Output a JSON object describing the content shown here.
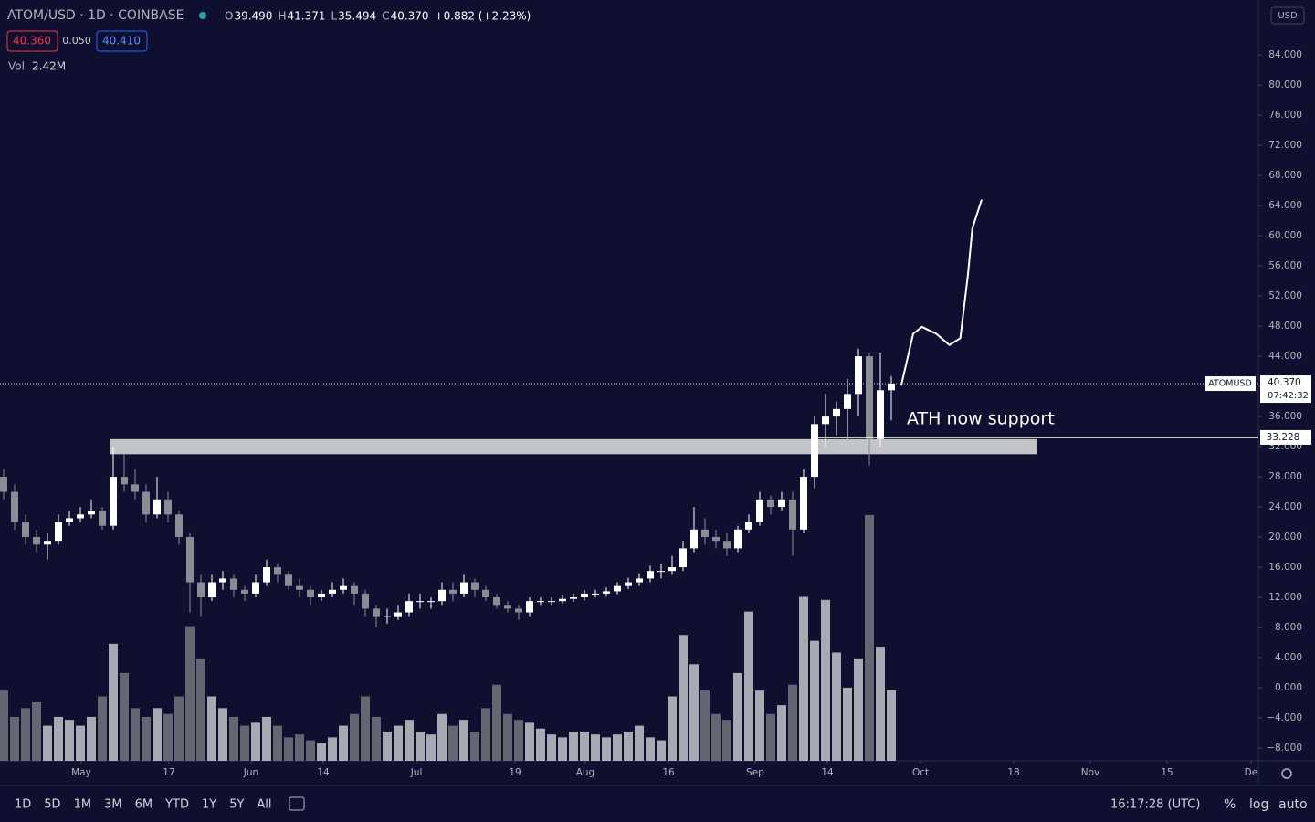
{
  "header": {
    "symbol": "ATOM/USD · 1D · COINBASE",
    "ohlc": [
      {
        "key": "O",
        "value": "39.490"
      },
      {
        "key": "H",
        "value": "41.371"
      },
      {
        "key": "L",
        "value": "35.494"
      },
      {
        "key": "C",
        "value": "40.370"
      }
    ],
    "change": "+0.882 (+2.23%)"
  },
  "quotes": {
    "bid": "40.360",
    "spread": "0.050",
    "ask": "40.410"
  },
  "volume_label": {
    "label": "Vol",
    "value": "2.42M"
  },
  "currency": "USD",
  "toolbar": {
    "ranges": [
      "1D",
      "5D",
      "1M",
      "3M",
      "6M",
      "YTD",
      "1Y",
      "5Y",
      "All"
    ],
    "time": "16:17:28 (UTC)",
    "options": [
      "%",
      "log",
      "auto"
    ]
  },
  "chart_data": {
    "type": "candlestick",
    "open": [
      28,
      26,
      22,
      20,
      19,
      19.5,
      22,
      22.5,
      23,
      23.5,
      21.5,
      28,
      27,
      26,
      23,
      25,
      23,
      20,
      14,
      12,
      14,
      14.5,
      13,
      12.5,
      14,
      16,
      15,
      13.5,
      13,
      12,
      12.5,
      13,
      13.5,
      12.5,
      10.5,
      9.5,
      9.5,
      10,
      11.5,
      11.5,
      11.5,
      13,
      12.5,
      14,
      13,
      12,
      11,
      10.5,
      10,
      11.5,
      11.5,
      11.5,
      11.8,
      12,
      12.5,
      12.5,
      12.8,
      13.5,
      14,
      14.5,
      15.5,
      15.5,
      16,
      18.5,
      21,
      20,
      19.5,
      18.5,
      21,
      22,
      25,
      24,
      25,
      21,
      28,
      35,
      36,
      37,
      39,
      44,
      33,
      39.49
    ],
    "high": [
      29,
      27,
      23,
      21,
      20.5,
      23,
      23.5,
      24,
      25,
      24,
      32,
      31,
      29,
      27,
      28,
      26,
      23.5,
      20.5,
      15,
      15,
      15.5,
      15,
      13.5,
      15,
      17,
      16.5,
      15.5,
      14.5,
      13.5,
      13,
      14,
      14.5,
      14,
      13,
      11,
      10.5,
      11,
      12.5,
      12.5,
      12,
      14,
      14,
      15,
      14.5,
      13.5,
      12.5,
      11.5,
      11,
      12,
      12,
      12,
      12.3,
      12.5,
      13,
      13,
      13.3,
      14,
      14.6,
      15.2,
      16.2,
      16.5,
      17.5,
      19.5,
      24,
      22.5,
      21,
      20.5,
      21.5,
      23,
      26,
      25.5,
      26,
      26,
      29,
      36,
      39,
      38,
      41,
      45,
      44.5,
      44.5,
      41.371
    ],
    "low": [
      25,
      21,
      19,
      18,
      17,
      19,
      21.5,
      22,
      22.5,
      21,
      21,
      26,
      25,
      22,
      22.5,
      22,
      19,
      10,
      9.5,
      11.5,
      13,
      12,
      11.5,
      12,
      13.5,
      14,
      13,
      12,
      11,
      11.5,
      12,
      12.5,
      11,
      9.5,
      8,
      8.5,
      9,
      9.5,
      10.5,
      10.5,
      11,
      11.5,
      12,
      12,
      11.5,
      10.5,
      10,
      9,
      9.5,
      11,
      11,
      11.2,
      11.4,
      11.6,
      12,
      12.1,
      12.4,
      13.1,
      13.5,
      14,
      14.5,
      15,
      15.5,
      18,
      19,
      18.5,
      17.5,
      18,
      20.5,
      21.5,
      23,
      23.5,
      17.5,
      20.5,
      26.5,
      32,
      33.5,
      33,
      36,
      29.5,
      32,
      35.494
    ],
    "close": [
      26,
      22,
      20,
      19,
      19.5,
      22,
      22.5,
      23,
      23.5,
      21.5,
      28,
      27,
      26,
      23,
      25,
      23,
      20,
      14,
      12,
      14,
      14.5,
      13,
      12.5,
      14,
      16,
      15,
      13.5,
      13,
      12,
      12.5,
      13,
      13.5,
      12.5,
      10.5,
      9.5,
      9.5,
      10,
      11.5,
      11.5,
      11.5,
      13,
      12.5,
      14,
      13,
      12,
      11,
      10.5,
      10,
      11.5,
      11.5,
      11.5,
      11.8,
      12,
      12.5,
      12.5,
      12.8,
      13.5,
      14,
      14.5,
      15.5,
      15.5,
      16,
      18.5,
      21,
      20,
      19.5,
      18.5,
      21,
      22,
      25,
      24,
      25,
      21,
      28,
      35,
      36,
      37,
      39,
      44,
      33,
      39.49,
      40.37
    ],
    "volume": [
      2.4,
      1.5,
      1.8,
      2,
      1.2,
      1.5,
      1.4,
      1.2,
      1.5,
      2.2,
      4.0,
      3.0,
      1.8,
      1.5,
      1.8,
      1.6,
      2.2,
      4.6,
      3.5,
      2.2,
      1.8,
      1.5,
      1.2,
      1.3,
      1.5,
      1.2,
      0.8,
      0.9,
      0.7,
      0.6,
      0.8,
      1.2,
      1.6,
      2.2,
      1.5,
      1.0,
      1.2,
      1.4,
      1.0,
      0.9,
      1.6,
      1.2,
      1.4,
      1.0,
      1.8,
      2.6,
      1.6,
      1.4,
      1.3,
      1.1,
      0.9,
      0.8,
      1.0,
      1.0,
      0.9,
      0.8,
      0.9,
      1.0,
      1.2,
      0.8,
      0.7,
      2.2,
      4.3,
      3.3,
      2.4,
      1.6,
      1.4,
      3.0,
      5.1,
      2.4,
      1.6,
      1.9,
      2.6,
      5.6,
      4.1,
      5.5,
      3.7,
      2.5,
      3.5,
      8.4,
      3.9,
      2.42
    ],
    "up_color": "#ffffff",
    "down_color": "#8a8c96",
    "volume_up_color": "#b9bbc2",
    "volume_down_color": "#6e707a",
    "ylim": [
      -9.7,
      91.3
    ],
    "vlim": [
      0,
      26
    ],
    "yticks": [
      {
        "value": -8,
        "label": "−8.000"
      },
      {
        "value": -4,
        "label": "−4.000"
      },
      {
        "value": 0,
        "label": "0.000"
      },
      {
        "value": 4,
        "label": "4.000"
      },
      {
        "value": 8,
        "label": "8.000"
      },
      {
        "value": 12,
        "label": "12.000"
      },
      {
        "value": 16,
        "label": "16.000"
      },
      {
        "value": 20,
        "label": "20.000"
      },
      {
        "value": 24,
        "label": "24.000"
      },
      {
        "value": 28,
        "label": "28.000"
      },
      {
        "value": 32,
        "label": "32.000"
      },
      {
        "value": 36,
        "label": "36.000"
      },
      {
        "value": 40,
        "label": "40.000"
      },
      {
        "value": 44,
        "label": "44.000"
      },
      {
        "value": 48,
        "label": "48.000"
      },
      {
        "value": 52,
        "label": "52.000"
      },
      {
        "value": 56,
        "label": "56.000"
      },
      {
        "value": 60,
        "label": "60.000"
      },
      {
        "value": 64,
        "label": "64.000"
      },
      {
        "value": 68,
        "label": "68.000"
      },
      {
        "value": 72,
        "label": "72.000"
      },
      {
        "value": 76,
        "label": "76.000"
      },
      {
        "value": 80,
        "label": "80.000"
      },
      {
        "value": 84,
        "label": "84.000"
      }
    ],
    "xlim": [
      -0.333,
      114.5
    ],
    "xticks": [
      {
        "value": 7.08,
        "label": "May"
      },
      {
        "value": 15.08,
        "label": "17"
      },
      {
        "value": 22.58,
        "label": "Jun"
      },
      {
        "value": 29.17,
        "label": "14"
      },
      {
        "value": 37.67,
        "label": "Jul"
      },
      {
        "value": 46.67,
        "label": "19"
      },
      {
        "value": 53.08,
        "label": "Aug"
      },
      {
        "value": 60.67,
        "label": "16"
      },
      {
        "value": 68.58,
        "label": "Sep"
      },
      {
        "value": 75.17,
        "label": "14"
      },
      {
        "value": 83.67,
        "label": "Oct"
      },
      {
        "value": 92.17,
        "label": "18"
      },
      {
        "value": 99.17,
        "label": "Nov"
      },
      {
        "value": 106.17,
        "label": "15"
      },
      {
        "value": 113.83,
        "label": "De"
      }
    ],
    "zone": {
      "x": [
        9.67,
        94.33
      ],
      "y": [
        31,
        33
      ],
      "color": "#c3c4c8"
    },
    "support": {
      "x": 73.83,
      "value": 33.228,
      "label": "33.228",
      "text": "ATH now support"
    },
    "last_price": {
      "symbol_tag": "ATOMUSD",
      "label": "40.370",
      "countdown": "07:42:32"
    },
    "projection": {
      "x": [
        81.9,
        83,
        83.8,
        85.1,
        86.3,
        87.3,
        88,
        88.4,
        89.25
      ],
      "y": [
        40.1,
        47,
        47.9,
        47,
        45.5,
        46.4,
        54.9,
        61,
        64.8
      ]
    }
  }
}
